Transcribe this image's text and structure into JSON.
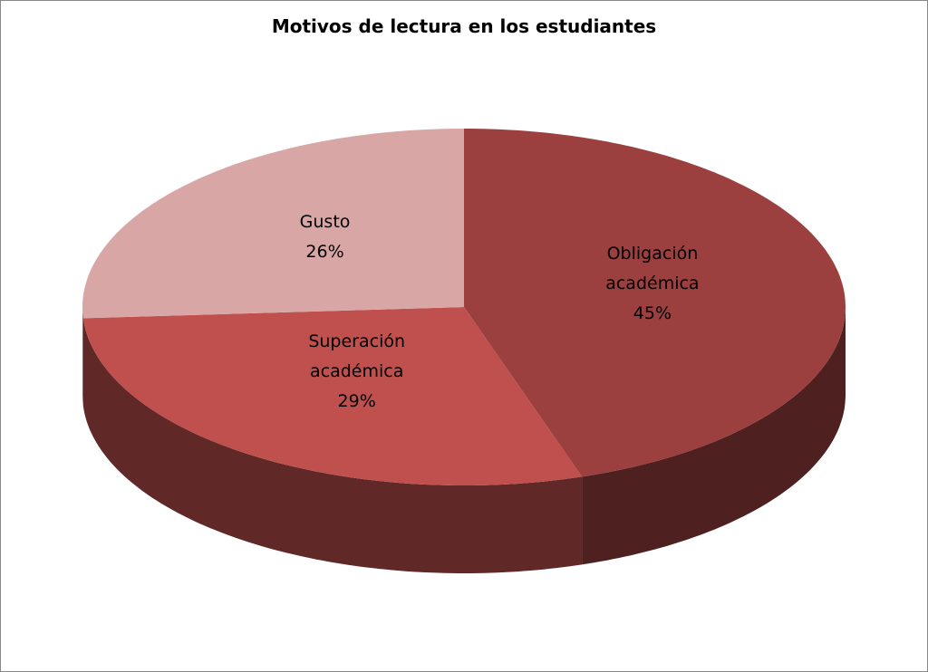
{
  "chart_data": {
    "type": "pie",
    "title": "Motivos de lectura en los estudiantes",
    "categories": [
      "Obligación académica",
      "Superación académica",
      "Gusto"
    ],
    "values": [
      45,
      29,
      26
    ],
    "value_labels": [
      "45%",
      "29%",
      "26%"
    ],
    "colors": [
      "#9b3f3f",
      "#c0504d",
      "#d9a6a6"
    ]
  }
}
